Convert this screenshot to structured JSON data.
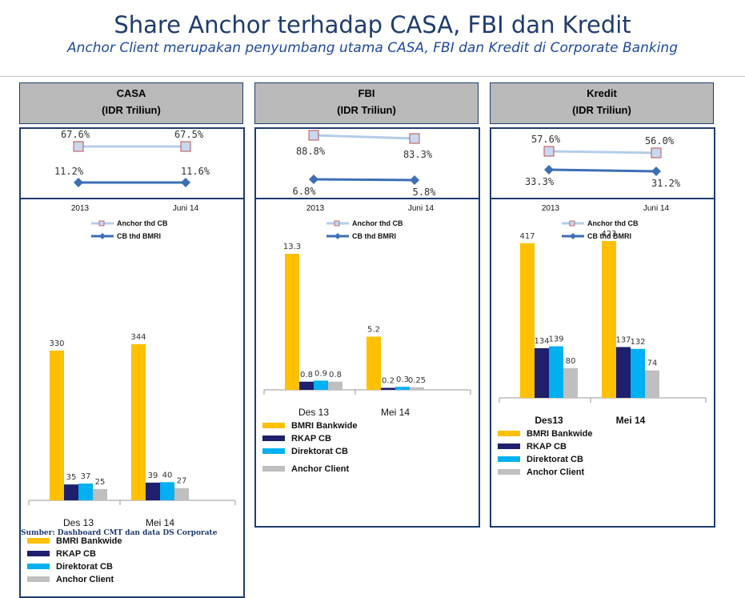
{
  "page": {
    "title": "Share Anchor terhadap CASA, FBI dan Kredit",
    "subtitle": "Anchor Client merupakan penyumbang utama CASA, FBI dan Kredit di Corporate Banking",
    "source": "Sumber: Dashboard CMT dan data DS Corporate"
  },
  "colors": {
    "bmri": "#ffc000",
    "rkap": "#1f1f6e",
    "direktorat": "#00b0f0",
    "anchor": "#bfbfbf",
    "anchor_line": "#b4cde8",
    "cb_line": "#3d6fb5",
    "border": "#1f3c6e"
  },
  "chart_data": [
    {
      "type": "bar",
      "title": "CASA",
      "unit": "(IDR Triliun)",
      "ratio_chart": {
        "type": "line",
        "x": [
          "2013",
          "Juni 14"
        ],
        "series": [
          {
            "name": "Anchor thd CB",
            "values": [
              67.6,
              67.5
            ],
            "labels": [
              "67.6%",
              "67.5%"
            ]
          },
          {
            "name": "CB thd BMRI",
            "values": [
              11.2,
              11.6
            ],
            "labels": [
              "11.2%",
              "11.6%"
            ]
          }
        ]
      },
      "categories": [
        "Des 13",
        "Mei 14"
      ],
      "series": [
        {
          "name": "BMRI Bankwide",
          "values": [
            330,
            344
          ],
          "labels": [
            "330",
            "344"
          ]
        },
        {
          "name": "RKAP CB",
          "values": [
            35,
            39
          ],
          "labels": [
            "35",
            "39"
          ]
        },
        {
          "name": "Direktorat CB",
          "values": [
            37,
            40
          ],
          "labels": [
            "37",
            "40"
          ]
        },
        {
          "name": "Anchor Client",
          "values": [
            25,
            27
          ],
          "labels": [
            "25",
            "27"
          ]
        }
      ]
    },
    {
      "type": "bar",
      "title": "FBI",
      "unit": "(IDR Triliun)",
      "ratio_chart": {
        "type": "line",
        "x": [
          "2013",
          "Juni 14"
        ],
        "series": [
          {
            "name": "Anchor thd CB",
            "values": [
              88.8,
              83.3
            ],
            "labels": [
              "88.8%",
              "83.3%"
            ]
          },
          {
            "name": "CB thd BMRI",
            "values": [
              6.8,
              5.8
            ],
            "labels": [
              "6.8%",
              "5.8%"
            ]
          }
        ]
      },
      "categories": [
        "Des 13",
        "Mei 14"
      ],
      "series": [
        {
          "name": "BMRI Bankwide",
          "values": [
            13.3,
            5.2
          ],
          "labels": [
            "13.3",
            "5.2"
          ]
        },
        {
          "name": "RKAP CB",
          "values": [
            0.8,
            0.2
          ],
          "labels": [
            "0.8",
            "0.2"
          ]
        },
        {
          "name": "Direktorat CB",
          "values": [
            0.9,
            0.3
          ],
          "labels": [
            "0.9",
            "0.3"
          ]
        },
        {
          "name": "Anchor Client",
          "values": [
            0.8,
            0.25
          ],
          "labels": [
            "0.8",
            "0.25"
          ]
        }
      ]
    },
    {
      "type": "bar",
      "title": "Kredit",
      "unit": "(IDR Triliun)",
      "ratio_chart": {
        "type": "line",
        "x": [
          "2013",
          "Juni 14"
        ],
        "series": [
          {
            "name": "Anchor thd CB",
            "values": [
              57.6,
              56.0
            ],
            "labels": [
              "57.6%",
              "56.0%"
            ]
          },
          {
            "name": "CB thd BMRI",
            "values": [
              33.3,
              31.2
            ],
            "labels": [
              "33.3%",
              "31.2%"
            ]
          }
        ]
      },
      "categories": [
        "Des13",
        "Mei 14"
      ],
      "series": [
        {
          "name": "BMRI Bankwide",
          "values": [
            417,
            423
          ],
          "labels": [
            "417",
            "423"
          ]
        },
        {
          "name": "RKAP CB",
          "values": [
            134,
            137
          ],
          "labels": [
            "134",
            "137"
          ]
        },
        {
          "name": "Direktorat CB",
          "values": [
            139,
            132
          ],
          "labels": [
            "139",
            "132"
          ]
        },
        {
          "name": "Anchor Client",
          "values": [
            80,
            74
          ],
          "labels": [
            "80",
            "74"
          ]
        }
      ]
    }
  ]
}
